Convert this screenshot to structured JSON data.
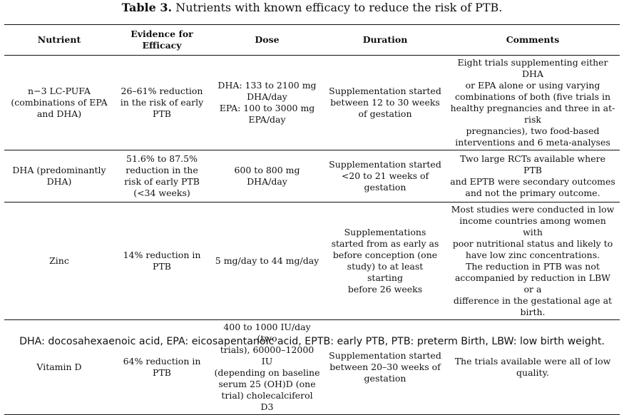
{
  "caption": {
    "label": "Table 3.",
    "text": "Nutrients with known efficacy to reduce the risk of PTB."
  },
  "headers": [
    "Nutrient",
    "Evidence for\nEfficacy",
    "Dose",
    "Duration",
    "Comments"
  ],
  "rows": [
    {
      "nutrient": "n−3 LC-PUFA\n(combinations of EPA\nand DHA)",
      "evidence": "26–61% reduction\nin the risk of early\nPTB",
      "dose": "DHA: 133 to 2100 mg\nDHA/day\nEPA: 100 to 3000 mg\nEPA/day",
      "duration": "Supplementation started\nbetween 12 to 30 weeks\nof gestation",
      "comments": "Eight trials supplementing either DHA\nor EPA alone or using varying\ncombinations of both (five trials in\nhealthy pregnancies and three in at-risk\npregnancies), two food-based\ninterventions and 6 meta-analyses"
    },
    {
      "nutrient": "DHA (predominantly\nDHA)",
      "evidence": "51.6% to 87.5%\nreduction in the\nrisk of early PTB\n(<34 weeks)",
      "dose": "600 to 800 mg DHA/day",
      "duration": "Supplementation started\n<20 to 21 weeks of\ngestation",
      "comments": "Two large RCTs available where PTB\nand EPTB were secondary outcomes\nand not the primary outcome."
    },
    {
      "nutrient": "Zinc",
      "evidence": "14% reduction in\nPTB",
      "dose": "5 mg/day to 44 mg/day",
      "duration": "Supplementations\nstarted from as early as\nbefore conception (one\nstudy) to at least starting\nbefore 26 weeks",
      "comments": "Most studies were conducted in low\nincome countries among women with\npoor nutritional status and likely to\nhave low zinc concentrations.\nThe reduction in PTB was not\naccompanied by reduction in LBW or a\ndifference in the gestational age at birth."
    },
    {
      "nutrient": "Vitamin D",
      "evidence": "64% reduction in\nPTB",
      "dose": "400 to 1000 IU/day (two\ntrials), 60000–12000 IU\n(depending on baseline\nserum 25 (OH)D (one\ntrial) cholecalciferol D3",
      "duration": "Supplementation started\nbetween 20–30 weeks of\ngestation",
      "comments": "The trials available were all of low\nquality."
    }
  ],
  "footnote": "DHA: docosahexaenoic acid, EPA: eicosapentanoic acid, EPTB: early PTB, PTB: preterm Birth, LBW: low birth weight."
}
